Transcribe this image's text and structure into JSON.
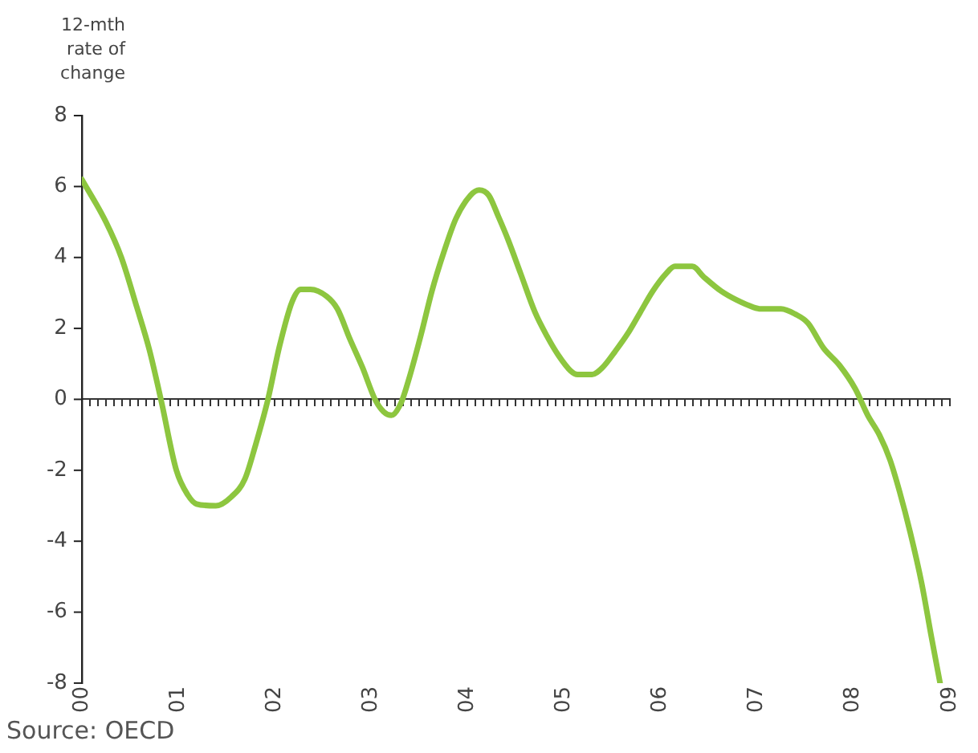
{
  "chart_data": {
    "type": "line",
    "ylabel": "12-mth rate of change",
    "annotations": [
      "Source: OECD"
    ],
    "xlim": [
      0,
      9
    ],
    "xticks": [
      {
        "value": 0,
        "label": "00"
      },
      {
        "value": 1,
        "label": "01"
      },
      {
        "value": 2,
        "label": "02"
      },
      {
        "value": 3,
        "label": "03"
      },
      {
        "value": 4,
        "label": "04"
      },
      {
        "value": 5,
        "label": "05"
      },
      {
        "value": 6,
        "label": "06"
      },
      {
        "value": 7,
        "label": "07"
      },
      {
        "value": 8,
        "label": "08"
      },
      {
        "value": 9,
        "label": "09"
      }
    ],
    "ref_lines": [
      {
        "axis": "y",
        "value": 0,
        "color": "#333333"
      }
    ],
    "ylim": [
      -8,
      8
    ],
    "yticks": [
      -8,
      -6,
      -4,
      -2,
      0,
      2,
      4,
      6,
      8
    ],
    "grid": false,
    "legend": false,
    "marker": "none",
    "line_style": "solid",
    "series": [
      {
        "color": "#8dc63f",
        "x": [
          0,
          0.25,
          0.41,
          0.57,
          0.7,
          0.82,
          0.98,
          1.1,
          1.19,
          1.39,
          1.55,
          1.69,
          1.8,
          1.93,
          2.05,
          2.18,
          2.27,
          2.37,
          2.54,
          2.65,
          2.78,
          2.91,
          3.04,
          3.13,
          3.21,
          3.31,
          3.4,
          3.52,
          3.63,
          3.76,
          3.88,
          4.03,
          4.12,
          4.22,
          4.32,
          4.42,
          4.55,
          4.7,
          4.83,
          4.94,
          5.07,
          5.14,
          5.29,
          5.4,
          5.53,
          5.66,
          5.79,
          5.92,
          6.06,
          6.15,
          6.33,
          6.45,
          6.63,
          6.79,
          6.96,
          7.04,
          7.25,
          7.4,
          7.53,
          7.69,
          7.86,
          8.02,
          8.15,
          8.27,
          8.38,
          8.48,
          8.59,
          8.71,
          8.81,
          8.9
        ],
        "values": [
          6.2,
          5.0,
          4.0,
          2.6,
          1.4,
          0.0,
          -2.0,
          -2.7,
          -2.95,
          -3.0,
          -2.75,
          -2.25,
          -1.3,
          0,
          1.5,
          2.75,
          3.1,
          3.1,
          2.9,
          2.55,
          1.7,
          0.9,
          0,
          -0.35,
          -0.45,
          -0.1,
          0.65,
          1.85,
          3.05,
          4.2,
          5.1,
          5.75,
          5.9,
          5.75,
          5.15,
          4.5,
          3.55,
          2.45,
          1.75,
          1.25,
          0.8,
          0.7,
          0.7,
          0.9,
          1.35,
          1.85,
          2.45,
          3.05,
          3.55,
          3.75,
          3.75,
          3.45,
          3.05,
          2.8,
          2.6,
          2.55,
          2.55,
          2.4,
          2.15,
          1.45,
          0.95,
          0.3,
          -0.45,
          -1.0,
          -1.7,
          -2.6,
          -3.75,
          -5.2,
          -6.7,
          -8.0
        ]
      }
    ]
  }
}
